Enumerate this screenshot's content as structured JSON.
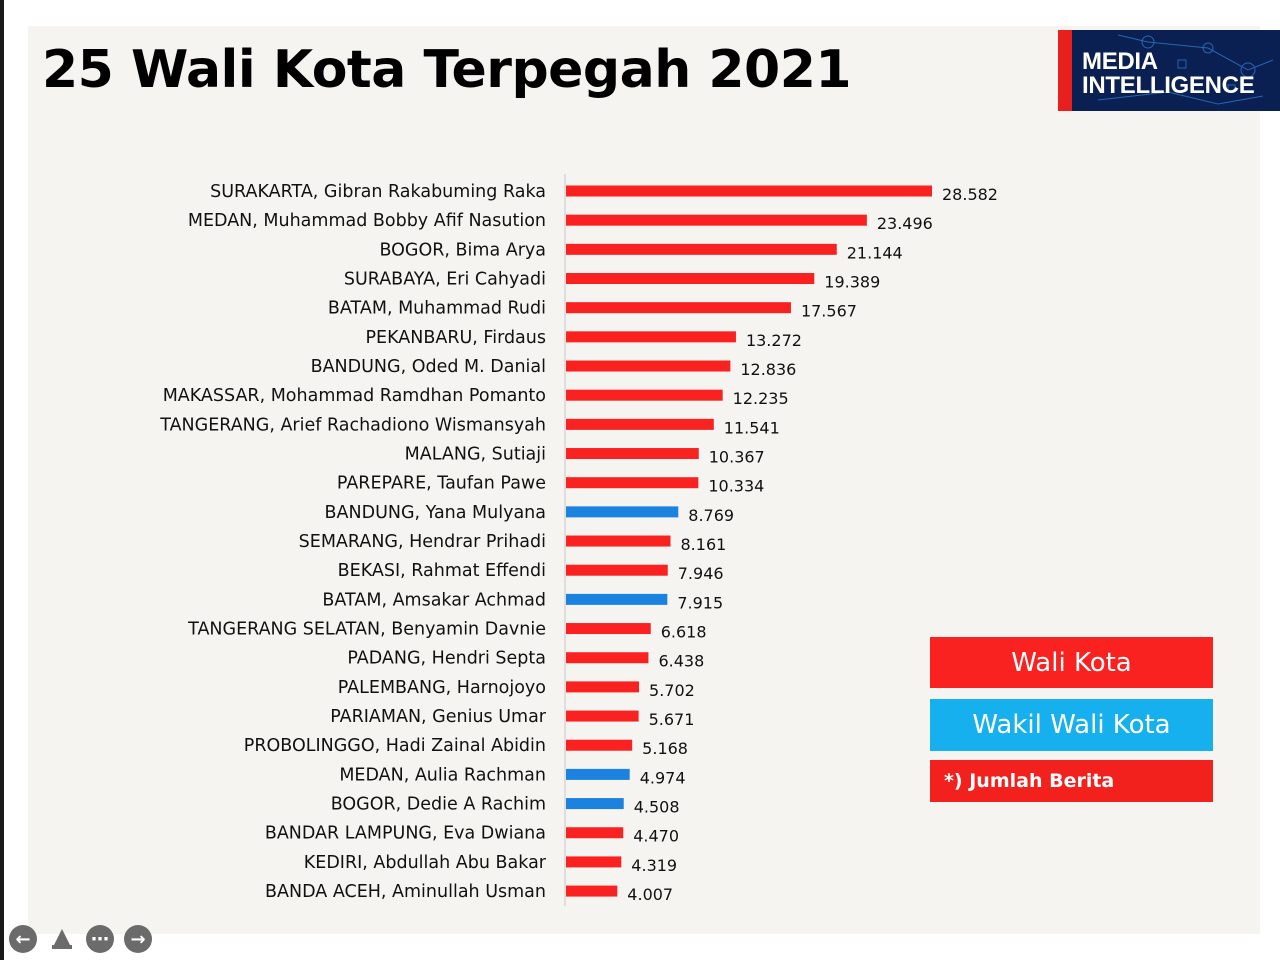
{
  "title": "25 Wali Kota Terpegah 2021",
  "logo": {
    "line1": "MEDIA",
    "line2": "INTELLIGENCE"
  },
  "colors": {
    "wali_kota": "#fa2121",
    "wakil_wali_kota": "#1b82e0",
    "note": "#f2211d",
    "wakil_legend": "#17b0ee"
  },
  "legend": {
    "wali_kota": "Wali Kota",
    "wakil_wali_kota": "Wakil Wali Kota",
    "note": "*) Jumlah Berita"
  },
  "nav": {
    "prev": "prev-icon",
    "home": "home-icon",
    "more": "more-icon",
    "next": "next-icon"
  },
  "chart_data": {
    "type": "bar",
    "orientation": "horizontal",
    "title": "25 Wali Kota Terpegah 2021",
    "categories": [
      "SURAKARTA, Gibran Rakabuming Raka",
      "MEDAN, Muhammad Bobby Afif Nasution",
      "BOGOR, Bima Arya",
      "SURABAYA, Eri Cahyadi",
      "BATAM, Muhammad Rudi",
      "PEKANBARU, Firdaus",
      "BANDUNG, Oded M. Danial",
      "MAKASSAR, Mohammad Ramdhan Pomanto",
      "TANGERANG, Arief Rachadiono Wismansyah",
      "MALANG, Sutiaji",
      "PAREPARE, Taufan Pawe",
      "BANDUNG, Yana Mulyana",
      "SEMARANG, Hendrar Prihadi",
      "BEKASI, Rahmat Effendi",
      "BATAM, Amsakar Achmad",
      "TANGERANG SELATAN, Benyamin Davnie",
      "PADANG, Hendri Septa",
      "PALEMBANG, Harnojoyo",
      "PARIAMAN, Genius Umar",
      "PROBOLINGGO, Hadi Zainal Abidin",
      "MEDAN, Aulia Rachman",
      "BOGOR, Dedie A Rachim",
      "BANDAR LAMPUNG, Eva Dwiana",
      "KEDIRI, Abdullah Abu Bakar",
      "BANDA ACEH, Aminullah Usman"
    ],
    "values": [
      28582,
      23496,
      21144,
      19389,
      17567,
      13272,
      12836,
      12235,
      11541,
      10367,
      10334,
      8769,
      8161,
      7946,
      7915,
      6618,
      6438,
      5702,
      5671,
      5168,
      4974,
      4508,
      4470,
      4319,
      4007
    ],
    "value_labels": [
      "28.582",
      "23.496",
      "21.144",
      "19.389",
      "17.567",
      "13.272",
      "12.836",
      "12.235",
      "11.541",
      "10.367",
      "10.334",
      "8.769",
      "8.161",
      "7.946",
      "7.915",
      "6.618",
      "6.438",
      "5.702",
      "5.671",
      "5.168",
      "4.974",
      "4.508",
      "4.470",
      "4.319",
      "4.007"
    ],
    "groups": [
      "wali",
      "wali",
      "wali",
      "wali",
      "wali",
      "wali",
      "wali",
      "wali",
      "wali",
      "wali",
      "wali",
      "wakil",
      "wali",
      "wali",
      "wakil",
      "wali",
      "wali",
      "wali",
      "wali",
      "wali",
      "wakil",
      "wakil",
      "wali",
      "wali",
      "wali"
    ],
    "xlim": [
      0,
      28582
    ],
    "grid": false
  }
}
